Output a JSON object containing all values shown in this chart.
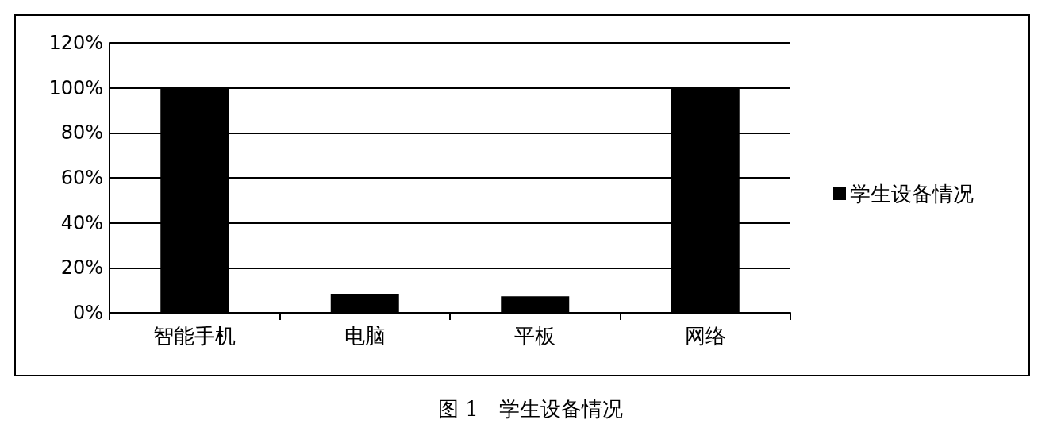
{
  "chart_data": {
    "type": "bar",
    "title": "图 1　学生设备情况",
    "categories": [
      "智能手机",
      "电脑",
      "平板",
      "网络"
    ],
    "series": [
      {
        "name": "学生设备情况",
        "color": "#000000",
        "values": [
          100,
          8.5,
          7.3,
          100
        ]
      }
    ],
    "ylim": [
      0,
      120
    ],
    "yticks": [
      {
        "value": 0,
        "label": "0%"
      },
      {
        "value": 20,
        "label": "20%"
      },
      {
        "value": 40,
        "label": "40%"
      },
      {
        "value": 60,
        "label": "60%"
      },
      {
        "value": 80,
        "label": "80%"
      },
      {
        "value": 100,
        "label": "100%"
      },
      {
        "value": 120,
        "label": "120%"
      }
    ],
    "grid": "y",
    "legend": "right"
  }
}
